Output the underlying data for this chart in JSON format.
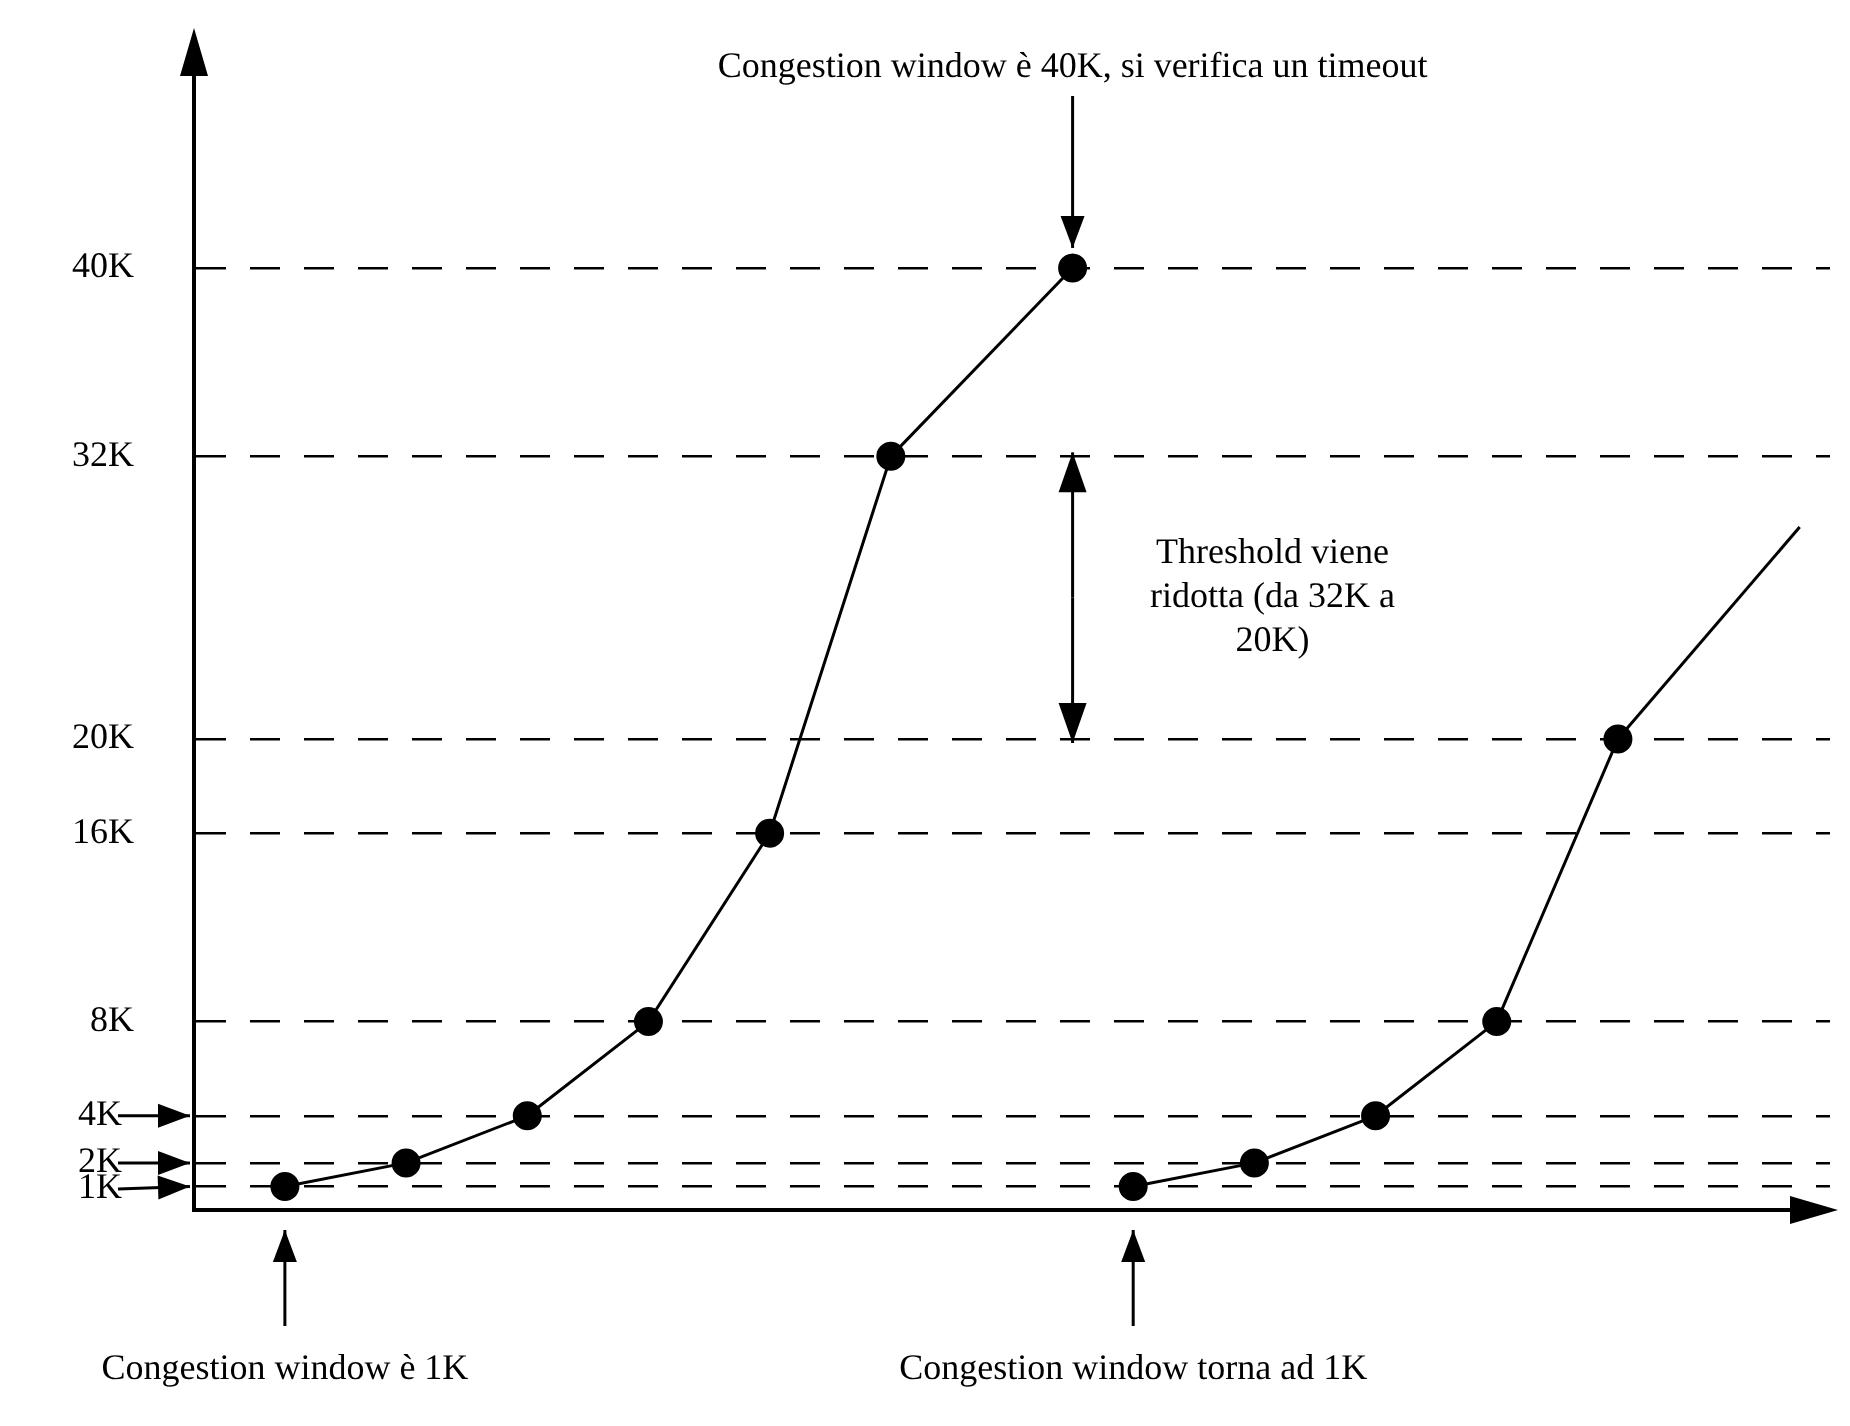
{
  "chart_data": {
    "type": "line",
    "categories": [
      null,
      null,
      null,
      null,
      null,
      null,
      null,
      null,
      null,
      null,
      null,
      null,
      null,
      null,
      null,
      null,
      null,
      null,
      null,
      null,
      null,
      null,
      null,
      null,
      null,
      null,
      null
    ],
    "series": [
      {
        "color": "#000000",
        "marker": "circle",
        "values": [
          null,
          1,
          null,
          2,
          null,
          4,
          null,
          8,
          null,
          16,
          null,
          32,
          null,
          null,
          40,
          null,
          null,
          null,
          null,
          null,
          null,
          null,
          null,
          null,
          null,
          null,
          null
        ]
      },
      {
        "color": "#000000",
        "marker": "circle",
        "values": [
          null,
          null,
          null,
          null,
          null,
          null,
          null,
          null,
          null,
          null,
          null,
          null,
          null,
          null,
          null,
          1,
          null,
          2,
          null,
          4,
          null,
          8,
          null,
          20,
          null,
          null,
          null
        ]
      },
      {
        "color": "#000000",
        "values": [
          null,
          null,
          null,
          null,
          null,
          null,
          null,
          null,
          null,
          null,
          null,
          null,
          null,
          null,
          null,
          null,
          null,
          null,
          null,
          null,
          null,
          null,
          null,
          20,
          null,
          null,
          29
        ]
      }
    ],
    "ylim": [
      0,
      49
    ],
    "yticks": [
      {
        "value": 1,
        "label": "1K"
      },
      {
        "value": 2,
        "label": "2K"
      },
      {
        "value": 4,
        "label": "4K"
      },
      {
        "value": 8,
        "label": "8K"
      },
      {
        "value": 16,
        "label": "16K"
      },
      {
        "value": 20,
        "label": "20K"
      },
      {
        "value": 32,
        "label": "32K"
      },
      {
        "value": 40,
        "label": "40K"
      }
    ],
    "grid": "y",
    "legend": false,
    "tick_labels": "y",
    "line_style": "solid",
    "annotations": [
      "Congestion window è 40K, si verifica un timeout",
      "Congestion window è 1K",
      "Congestion window torna ad 1K",
      "Threshold viene ridotta (da 32K a 20K)"
    ]
  }
}
